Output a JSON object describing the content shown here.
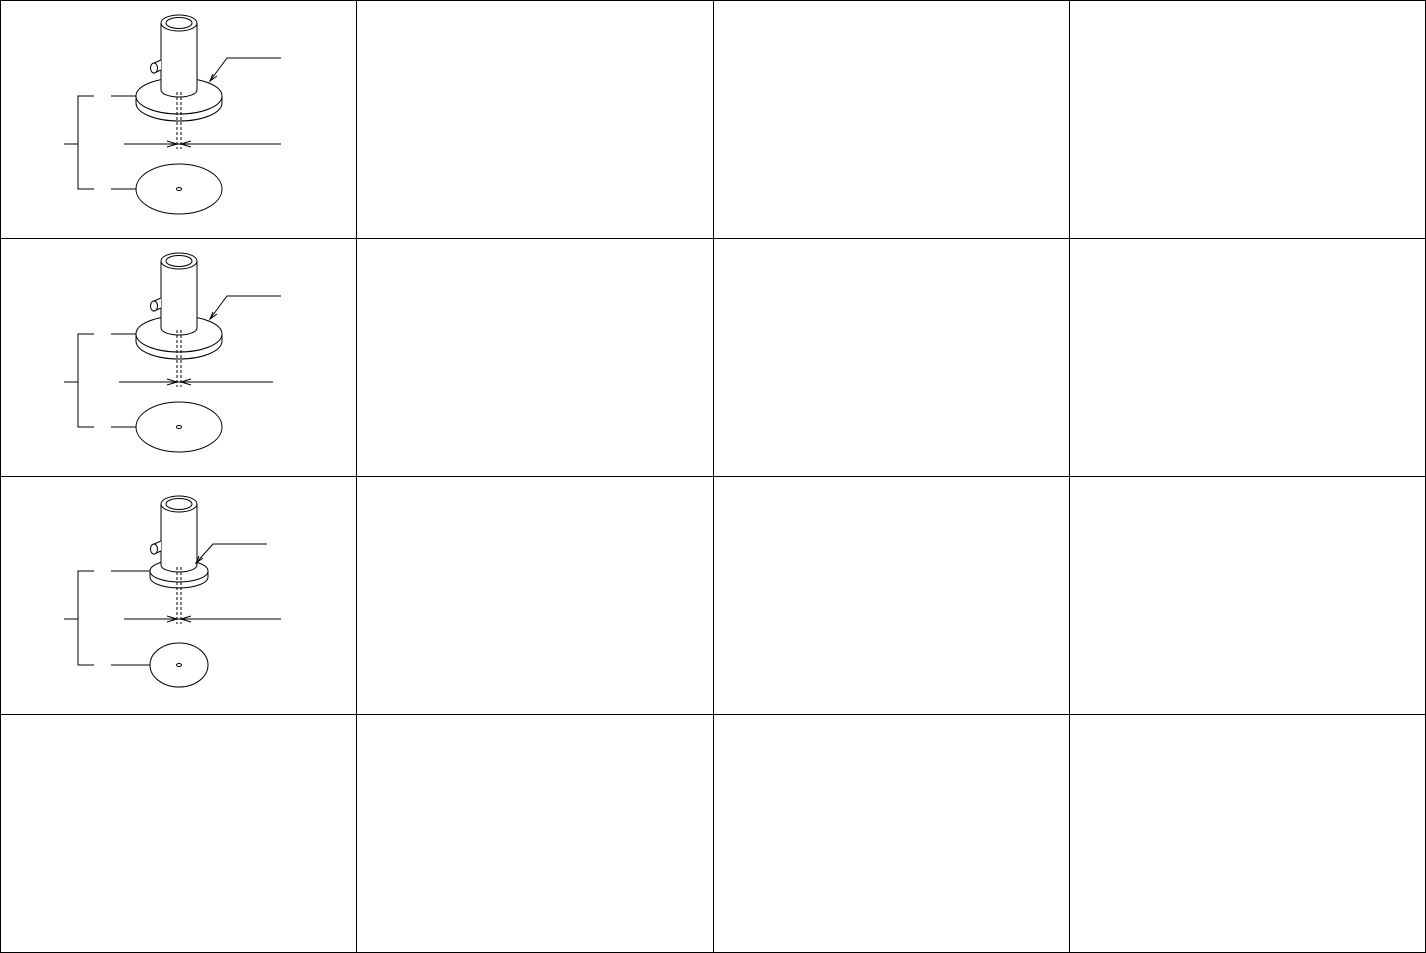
{
  "figures": [
    {
      "variant": "large-flange"
    },
    {
      "variant": "large-flange"
    },
    {
      "variant": "small-flange"
    }
  ]
}
